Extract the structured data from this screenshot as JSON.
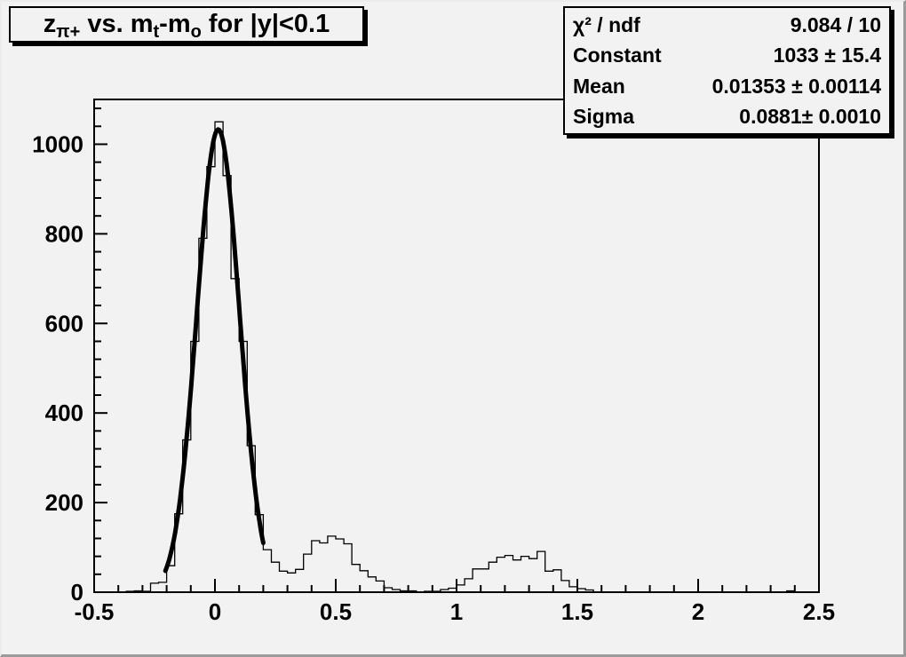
{
  "style": {
    "background": "#f2f2f2",
    "line_color": "#000000",
    "text_color": "#000000",
    "box_shadow_color": "#000000"
  },
  "title_box": {
    "plain_text": "z_{pi+} vs. m_{t}-m_{o} for |y|<0.1",
    "segments": [
      {
        "type": "t",
        "text": "z"
      },
      {
        "type": "s",
        "text": "π+"
      },
      {
        "type": "t",
        "text": " vs. m"
      },
      {
        "type": "s",
        "text": "t"
      },
      {
        "type": "t",
        "text": "-m"
      },
      {
        "type": "s",
        "text": "o"
      },
      {
        "type": "t",
        "text": " for |y|<0.1"
      }
    ]
  },
  "stats_box": {
    "rows": [
      {
        "label": "χ² / ndf",
        "value": "9.084 / 10"
      },
      {
        "label": "Constant",
        "value": "1033 ± 15.4"
      },
      {
        "label": "Mean",
        "value": "0.01353 ± 0.00114"
      },
      {
        "label": "Sigma",
        "value": "0.0881± 0.0010"
      }
    ]
  },
  "chart_data": {
    "type": "bar",
    "render_style": "root-step-histogram",
    "title": "z_pi+ vs. mt-mo for |y|<0.1",
    "xlabel": "",
    "ylabel": "",
    "xlim": [
      -0.5,
      2.5
    ],
    "ylim": [
      0,
      1100
    ],
    "x_ticks_major": [
      -0.5,
      0,
      0.5,
      1,
      1.5,
      2,
      2.5
    ],
    "x_tick_labels": [
      "-0.5",
      "0",
      "0.5",
      "1",
      "1.5",
      "2",
      "2.5"
    ],
    "x_minor_step": 0.1,
    "y_ticks_major": [
      0,
      200,
      400,
      600,
      800,
      1000
    ],
    "y_tick_labels": [
      "0",
      "200",
      "400",
      "600",
      "800",
      "1000"
    ],
    "y_minor_step": 40,
    "grid": false,
    "legend": "none",
    "bin_start": -0.5,
    "bin_width": 0.0333333,
    "bins": [
      0,
      0,
      0,
      0,
      2,
      3,
      2,
      20,
      22,
      59,
      175,
      340,
      560,
      790,
      950,
      1050,
      930,
      700,
      560,
      327,
      173,
      95,
      67,
      47,
      43,
      51,
      85,
      115,
      110,
      125,
      119,
      108,
      62,
      48,
      34,
      25,
      10,
      6,
      3,
      3,
      0,
      2,
      2,
      6,
      9,
      16,
      30,
      52,
      52,
      67,
      78,
      82,
      72,
      80,
      75,
      91,
      47,
      50,
      26,
      12,
      8,
      5,
      0,
      0,
      0,
      0,
      0,
      0,
      0,
      0,
      0,
      0,
      0,
      0,
      0,
      0,
      0,
      0,
      0,
      0,
      0,
      0,
      0,
      0,
      0,
      0,
      3,
      0,
      0,
      0
    ],
    "fit": {
      "shape": "gaussian",
      "constant": 1033,
      "mean": 0.01353,
      "sigma": 0.0881,
      "chi2": 9.084,
      "ndf": 10,
      "draw_range": [
        -0.205,
        0.2
      ],
      "line_width": 5
    }
  }
}
